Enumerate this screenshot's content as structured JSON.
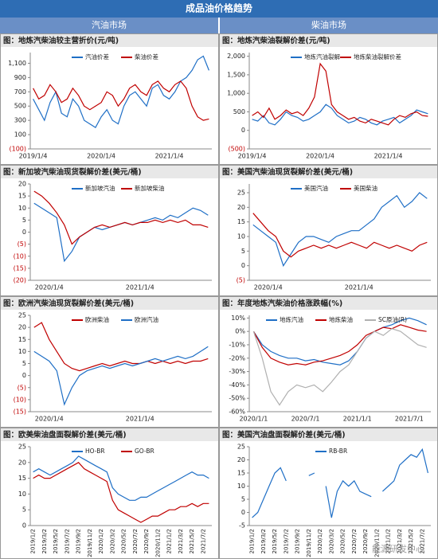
{
  "header": {
    "title": "成品油价格趋势",
    "left": "汽油市场",
    "right": "柴油市场"
  },
  "watermark": "能源研发中心",
  "chart_data": [
    {
      "type": "line",
      "title": "图：地炼汽柴油较主营折价(元/吨)",
      "categories": [
        "2019/1/4",
        null,
        null,
        null,
        null,
        null,
        null,
        null,
        null,
        null,
        null,
        null,
        "2020/1/4",
        null,
        null,
        null,
        null,
        null,
        null,
        null,
        null,
        null,
        null,
        null,
        "2021/1/4",
        null,
        null,
        null,
        null,
        null,
        null,
        null
      ],
      "series": [
        {
          "name": "汽油价差",
          "color": "#1f6fc6",
          "values": [
            600,
            450,
            300,
            550,
            700,
            400,
            350,
            600,
            500,
            300,
            250,
            200,
            350,
            450,
            300,
            250,
            500,
            650,
            700,
            600,
            500,
            750,
            800,
            650,
            600,
            700,
            850,
            900,
            1000,
            1150,
            1200,
            1000
          ]
        },
        {
          "name": "柴油价差",
          "color": "#c00000",
          "values": [
            750,
            600,
            650,
            800,
            700,
            550,
            600,
            750,
            650,
            500,
            450,
            500,
            550,
            700,
            650,
            500,
            600,
            750,
            800,
            700,
            650,
            800,
            850,
            750,
            700,
            800,
            850,
            750,
            500,
            350,
            300,
            320
          ]
        }
      ],
      "ylim": [
        -100,
        1250
      ],
      "yticks": [
        {
          "value": -100,
          "label": "(100)"
        },
        100,
        300,
        500,
        700,
        900,
        {
          "value": 1100,
          "label": "1,100"
        }
      ]
    },
    {
      "type": "line",
      "title": "图：地炼汽柴油裂解价差(元/吨)",
      "categories": [
        "2019/1/4",
        null,
        null,
        null,
        null,
        null,
        null,
        null,
        null,
        null,
        null,
        null,
        "2020/1/4",
        null,
        null,
        null,
        null,
        null,
        null,
        null,
        null,
        null,
        null,
        null,
        "2021/1/4",
        null,
        null,
        null,
        null,
        null,
        null,
        null
      ],
      "series": [
        {
          "name": "地炼汽油裂解",
          "color": "#1f6fc6",
          "values": [
            300,
            250,
            400,
            200,
            150,
            300,
            500,
            400,
            350,
            250,
            300,
            400,
            500,
            700,
            600,
            400,
            300,
            200,
            250,
            350,
            300,
            200,
            150,
            250,
            300,
            350,
            200,
            300,
            400,
            550,
            500,
            450
          ]
        },
        {
          "name": "地炼柴油裂解价差",
          "color": "#c00000",
          "values": [
            400,
            500,
            350,
            600,
            300,
            400,
            550,
            450,
            500,
            400,
            600,
            900,
            1800,
            1600,
            700,
            500,
            400,
            300,
            350,
            250,
            200,
            300,
            250,
            200,
            150,
            300,
            400,
            350,
            450,
            500,
            400,
            380
          ]
        }
      ],
      "ylim": [
        -500,
        2100
      ],
      "yticks": [
        {
          "value": -500,
          "label": "(500)"
        },
        0,
        500,
        {
          "value": 1000,
          "label": "1,000"
        },
        {
          "value": 1500,
          "label": "1,500"
        },
        {
          "value": 2000,
          "label": "2,000"
        }
      ]
    },
    {
      "type": "line",
      "title": "图：新加坡汽柴油现货裂解价差(美元/桶)",
      "categories": [
        null,
        null,
        "2020/1/4",
        null,
        null,
        null,
        null,
        null,
        null,
        null,
        null,
        null,
        null,
        null,
        "2021/1/4",
        null,
        null,
        null,
        null,
        null,
        null,
        null,
        null,
        null
      ],
      "series": [
        {
          "name": "新加坡汽油",
          "color": "#1f6fc6",
          "values": [
            12,
            10,
            8,
            6,
            -12,
            -8,
            -2,
            0,
            2,
            1,
            2,
            3,
            4,
            3,
            4,
            5,
            6,
            5,
            7,
            6,
            8,
            10,
            9,
            7
          ]
        },
        {
          "name": "新加坡柴油",
          "color": "#c00000",
          "values": [
            17,
            15,
            12,
            8,
            3,
            -5,
            -2,
            0,
            2,
            3,
            2,
            3,
            4,
            3,
            4,
            4,
            5,
            4,
            5,
            4,
            5,
            3,
            3,
            2
          ]
        }
      ],
      "ylim": [
        -20,
        20
      ],
      "yticks": [
        {
          "value": -20,
          "label": "(20)"
        },
        {
          "value": -15,
          "label": "(15)"
        },
        {
          "value": -10,
          "label": "(10)"
        },
        {
          "value": -5,
          "label": "(5)"
        },
        0,
        5,
        10,
        15,
        20
      ]
    },
    {
      "type": "line",
      "title": "图：美国汽柴油现货裂解价差(美元/桶)",
      "categories": [
        null,
        null,
        "2020/1/4",
        null,
        null,
        null,
        null,
        null,
        null,
        null,
        null,
        null,
        null,
        null,
        "2021/1/4",
        null,
        null,
        null,
        null,
        null,
        null,
        null,
        null,
        null
      ],
      "series": [
        {
          "name": "美国汽油",
          "color": "#1f6fc6",
          "values": [
            14,
            12,
            10,
            8,
            0,
            4,
            8,
            10,
            10,
            9,
            8,
            10,
            11,
            12,
            12,
            14,
            16,
            20,
            22,
            24,
            20,
            22,
            25,
            23
          ]
        },
        {
          "name": "美国柴油",
          "color": "#c00000",
          "values": [
            18,
            15,
            12,
            10,
            5,
            3,
            5,
            6,
            7,
            6,
            7,
            6,
            7,
            8,
            7,
            6,
            8,
            7,
            6,
            7,
            6,
            5,
            7,
            8
          ]
        }
      ],
      "ylim": [
        -5,
        28
      ],
      "yticks": [
        {
          "value": -5,
          "label": "(5)"
        },
        0,
        5,
        10,
        15,
        20,
        25
      ]
    },
    {
      "type": "line",
      "title": "图：欧洲汽柴油现货裂解价差(美元/桶)",
      "categories": [
        null,
        null,
        "2020/1/4",
        null,
        null,
        null,
        null,
        null,
        null,
        null,
        null,
        null,
        null,
        null,
        "2021/1/4",
        null,
        null,
        null,
        null,
        null,
        null,
        null,
        null,
        null
      ],
      "series": [
        {
          "name": "欧洲柴油",
          "color": "#c00000",
          "values": [
            20,
            22,
            15,
            10,
            5,
            3,
            2,
            3,
            4,
            5,
            4,
            5,
            6,
            5,
            5,
            6,
            5,
            6,
            5,
            6,
            5,
            6,
            6,
            7
          ]
        },
        {
          "name": "欧洲汽油",
          "color": "#1f6fc6",
          "values": [
            10,
            8,
            6,
            2,
            -12,
            -5,
            0,
            2,
            3,
            4,
            3,
            4,
            5,
            4,
            5,
            6,
            7,
            6,
            7,
            8,
            7,
            8,
            10,
            12
          ]
        }
      ],
      "ylim": [
        -15,
        25
      ],
      "yticks": [
        {
          "value": -15,
          "label": "(15)"
        },
        {
          "value": -10,
          "label": "(10)"
        },
        {
          "value": -5,
          "label": "(5)"
        },
        0,
        5,
        10,
        15,
        20,
        25
      ]
    },
    {
      "type": "line",
      "title": "图：年度地炼汽柴油价格涨跌幅(%)",
      "categories": [
        "2020/1/1",
        null,
        null,
        null,
        null,
        null,
        "2020/7/1",
        null,
        null,
        null,
        null,
        null,
        "2021/1/1",
        null,
        null,
        null,
        null,
        null,
        "2021/7/1",
        null,
        null
      ],
      "series": [
        {
          "name": "地炼汽油",
          "color": "#1f6fc6",
          "values": [
            0,
            -10,
            -15,
            -18,
            -20,
            -20,
            -22,
            -21,
            -23,
            -24,
            -25,
            -22,
            -15,
            -5,
            0,
            3,
            5,
            8,
            10,
            8,
            5
          ]
        },
        {
          "name": "地炼柴油",
          "color": "#c00000",
          "values": [
            0,
            -12,
            -20,
            -23,
            -25,
            -24,
            -25,
            -23,
            -22,
            -20,
            -18,
            -15,
            -10,
            -3,
            0,
            3,
            2,
            5,
            3,
            1,
            0
          ]
        },
        {
          "name": "SC原油(R)",
          "color": "#b0b0b0",
          "values": [
            0,
            -20,
            -45,
            -55,
            -45,
            -40,
            -42,
            -40,
            -45,
            -38,
            -30,
            -25,
            -15,
            -5,
            0,
            -3,
            2,
            0,
            -5,
            -10,
            -12
          ]
        }
      ],
      "ylim": [
        -60,
        12
      ],
      "yticks": [
        {
          "value": -60,
          "label": "-60%"
        },
        {
          "value": -50,
          "label": "-50%"
        },
        {
          "value": -40,
          "label": "-40%"
        },
        {
          "value": -30,
          "label": "-30%"
        },
        {
          "value": -20,
          "label": "-20%"
        },
        {
          "value": -10,
          "label": "-10%"
        },
        {
          "value": 0,
          "label": "0%"
        },
        {
          "value": 10,
          "label": "10%"
        }
      ]
    },
    {
      "type": "line",
      "title": "图：欧美柴油盘面裂解价差(美元/桶)",
      "categories": [
        "2019/1/2",
        null,
        "2019/3/2",
        null,
        "2019/5/2",
        null,
        "2019/7/2",
        null,
        "2019/9/2",
        null,
        "2019/11/2",
        null,
        "2020/1/2",
        null,
        "2020/3/2",
        null,
        "2020/5/2",
        null,
        "2020/7/2",
        null,
        "2020/9/2",
        null,
        "2020/11/2",
        null,
        "2021/1/2",
        null,
        "2021/3/2",
        null,
        "2021/5/2",
        null,
        "2021/7/2",
        null
      ],
      "series": [
        {
          "name": "HO-BR",
          "color": "#1f6fc6",
          "values": [
            17,
            18,
            17,
            16,
            17,
            18,
            19,
            20,
            22,
            21,
            20,
            19,
            18,
            17,
            12,
            10,
            9,
            8,
            8,
            9,
            9,
            10,
            11,
            12,
            13,
            14,
            15,
            16,
            17,
            16,
            16,
            15
          ]
        },
        {
          "name": "GO-BR",
          "color": "#c00000",
          "values": [
            15,
            16,
            15,
            15,
            16,
            17,
            18,
            19,
            20,
            18,
            17,
            16,
            15,
            14,
            8,
            5,
            4,
            3,
            2,
            1,
            2,
            3,
            3,
            4,
            5,
            5,
            6,
            6,
            7,
            6,
            7,
            7
          ]
        }
      ],
      "ylim": [
        0,
        25
      ],
      "yticks": [
        0,
        5,
        10,
        15,
        20,
        25
      ]
    },
    {
      "type": "line",
      "title": "图：美国汽油盘面裂解价差(美元/桶)",
      "categories": [
        "2019/1/2",
        null,
        "2019/3/2",
        null,
        "2019/5/2",
        null,
        "2019/7/2",
        null,
        "2019/9/2",
        null,
        "2019/11/2",
        null,
        "2020/1/2",
        null,
        "2020/3/2",
        null,
        "2020/5/2",
        null,
        "2020/7/2",
        null,
        "2020/9/2",
        null,
        "2020/11/2",
        null,
        "2021/1/2",
        null,
        "2021/3/2",
        null,
        "2021/5/2",
        null,
        "2021/7/2",
        null
      ],
      "series": [
        {
          "name": "RB-BR",
          "color": "#1f6fc6",
          "values": [
            -2,
            0,
            5,
            10,
            15,
            17,
            12,
            null,
            12,
            null,
            14,
            15,
            null,
            10,
            -2,
            8,
            12,
            10,
            12,
            8,
            7,
            6,
            null,
            8,
            10,
            12,
            18,
            20,
            22,
            21,
            24,
            15
          ]
        }
      ],
      "ylim": [
        -5,
        25
      ],
      "yticks": [
        -5,
        0,
        5,
        10,
        15,
        20,
        25
      ]
    }
  ]
}
